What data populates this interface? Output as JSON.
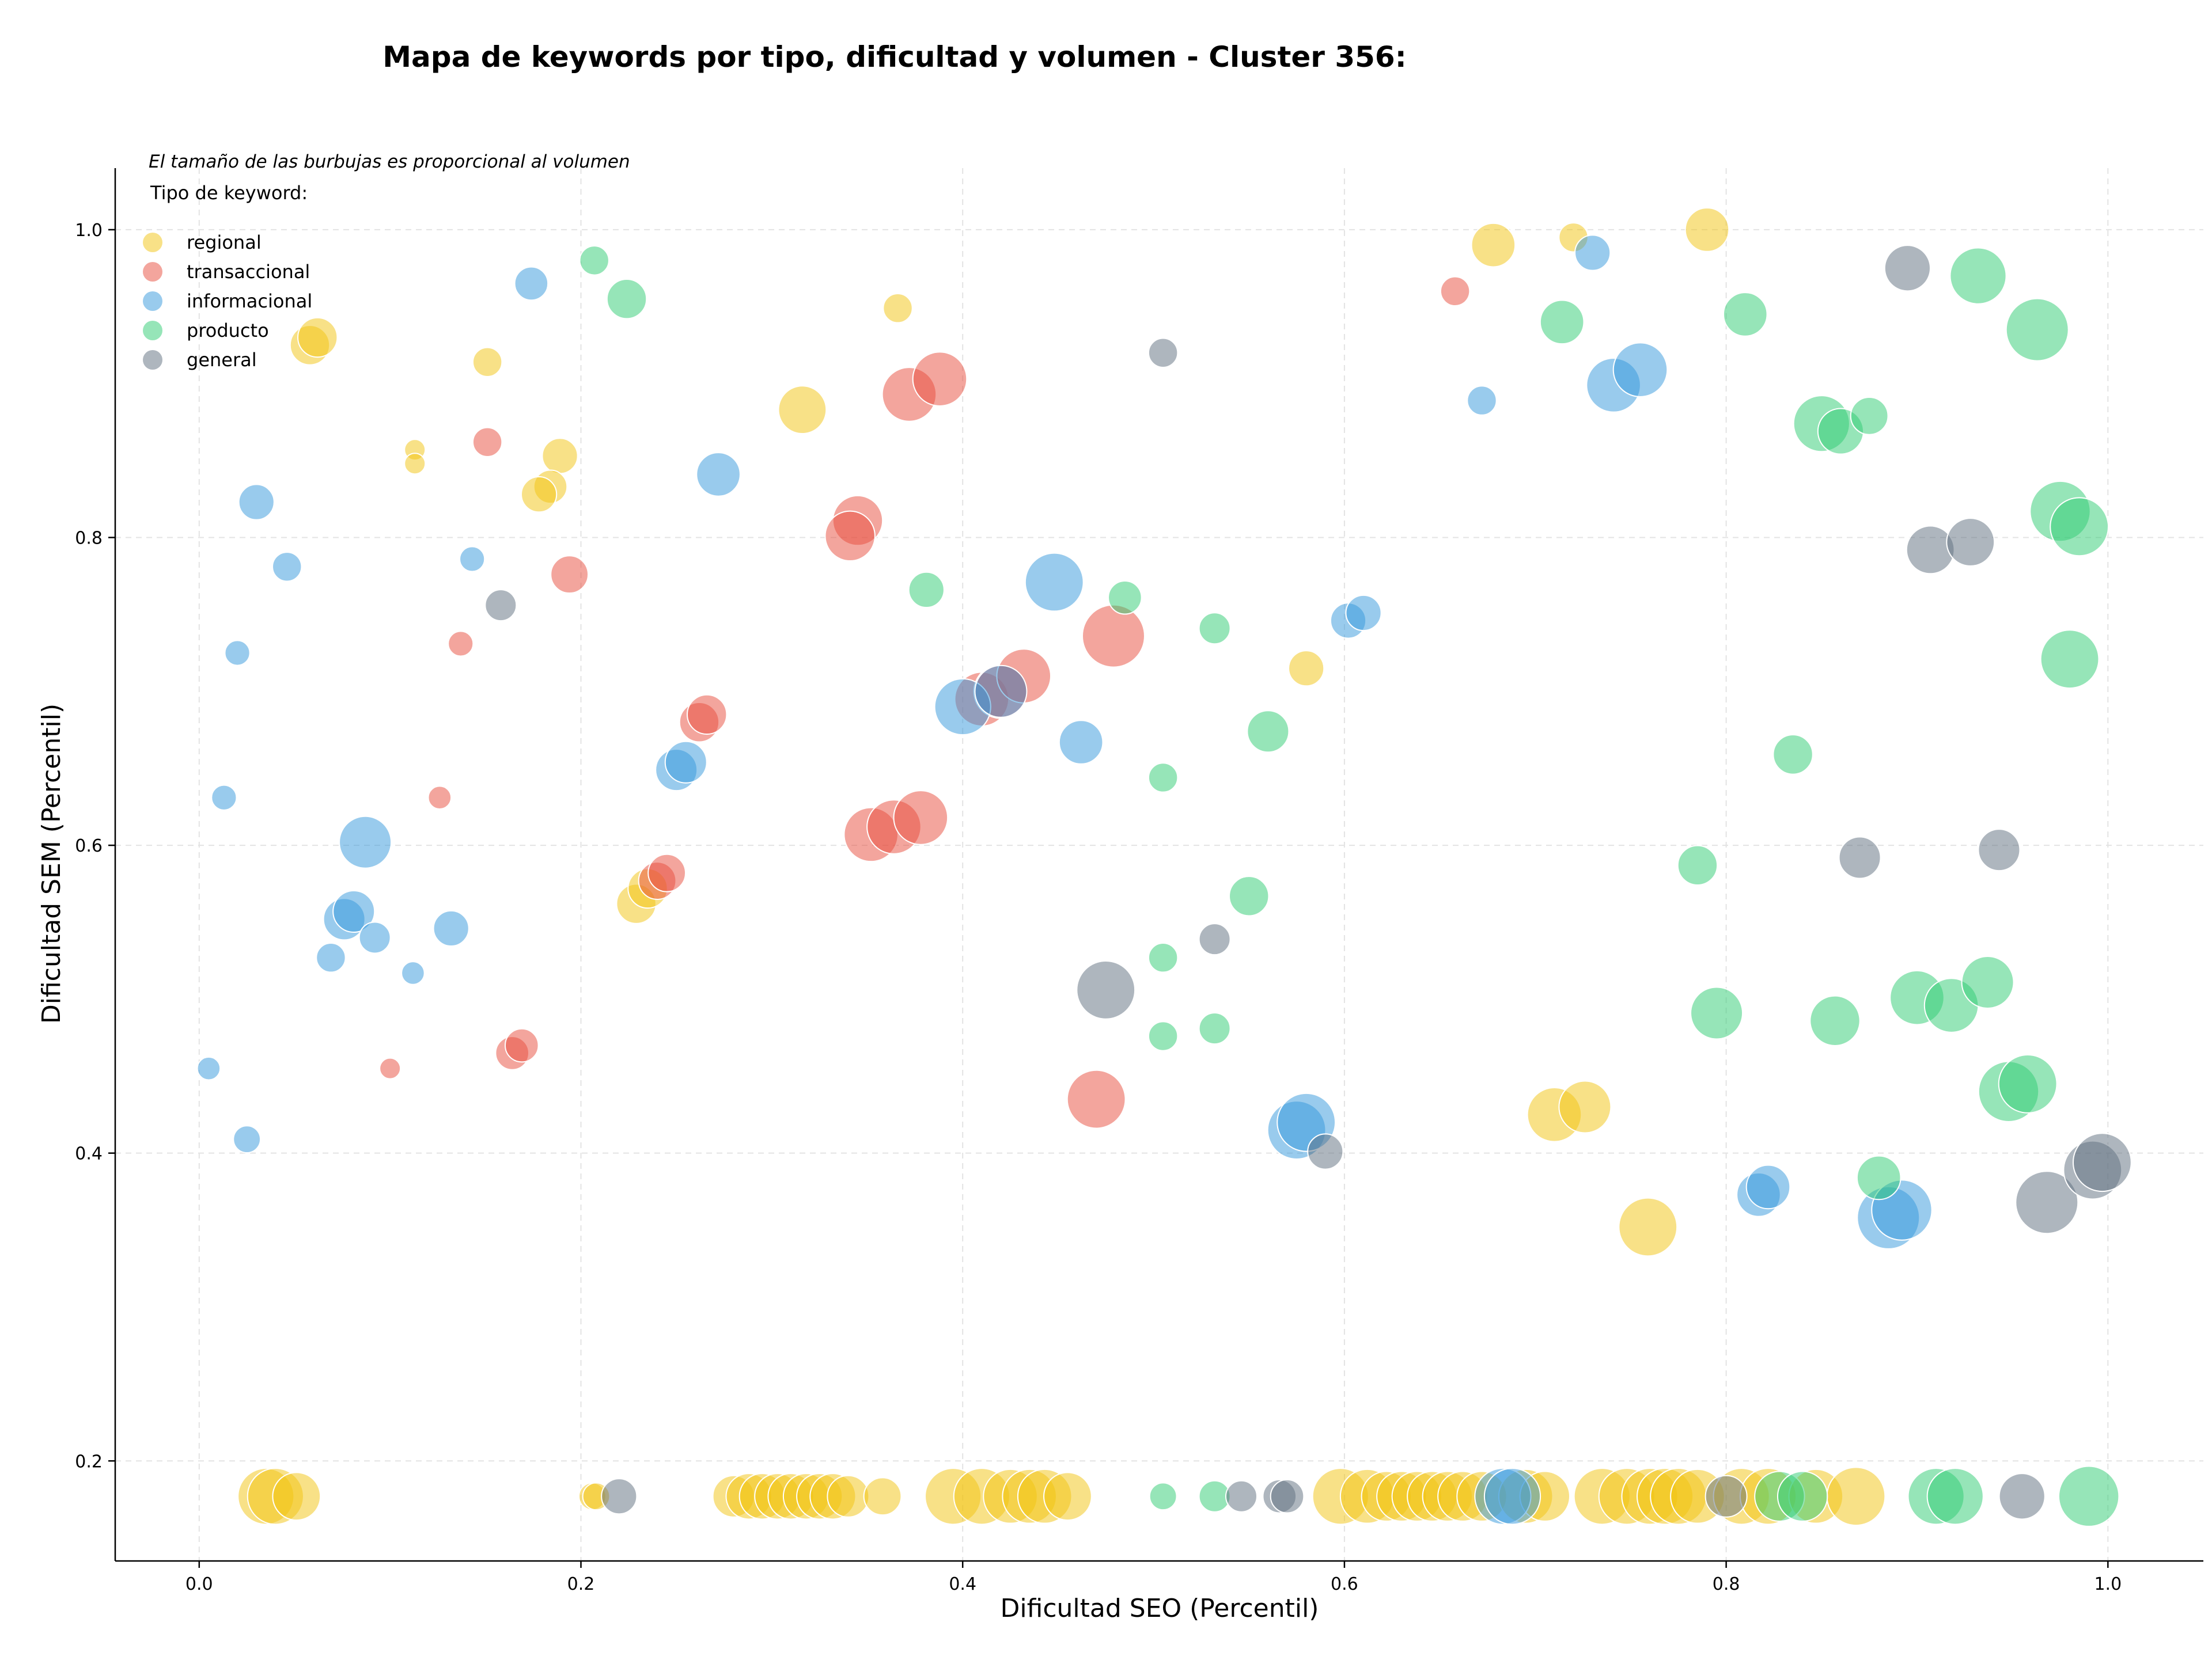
{
  "chart_data": {
    "type": "scatter",
    "title": "Mapa de keywords por tipo, dificultad y volumen - Cluster 356:",
    "subtitle": "El tamaño de las burbujas es proporcional al volumen",
    "xlabel": "Dificultad SEO (Percentil)",
    "ylabel": "Dificultad SEM (Percentil)",
    "xlim": [
      -0.044,
      1.05
    ],
    "ylim": [
      0.135,
      1.04
    ],
    "xticks": [
      0.0,
      0.2,
      0.4,
      0.6,
      0.8,
      1.0
    ],
    "yticks": [
      0.2,
      0.4,
      0.6,
      0.8,
      1.0
    ],
    "xtick_labels": [
      "0.0",
      "0.2",
      "0.4",
      "0.6",
      "0.8",
      "1.0"
    ],
    "ytick_labels": [
      "0.2",
      "0.4",
      "0.6",
      "0.8",
      "1.0"
    ],
    "grid": true,
    "legend": {
      "title": "Tipo de keyword:",
      "position": "top-left"
    },
    "series": [
      {
        "name": "regional",
        "color": "#f1c40f",
        "points": [
          {
            "x": 0.058,
            "y": 0.925,
            "r": 1.9
          },
          {
            "x": 0.062,
            "y": 0.93,
            "r": 1.9
          },
          {
            "x": 0.151,
            "y": 0.914,
            "r": 1.4
          },
          {
            "x": 0.113,
            "y": 0.857,
            "r": 1.0
          },
          {
            "x": 0.113,
            "y": 0.848,
            "r": 1.0
          },
          {
            "x": 0.189,
            "y": 0.853,
            "r": 1.7
          },
          {
            "x": 0.184,
            "y": 0.833,
            "r": 1.6
          },
          {
            "x": 0.178,
            "y": 0.828,
            "r": 1.7
          },
          {
            "x": 0.316,
            "y": 0.883,
            "r": 2.3
          },
          {
            "x": 0.366,
            "y": 0.949,
            "r": 1.4
          },
          {
            "x": 0.678,
            "y": 0.99,
            "r": 2.1
          },
          {
            "x": 0.72,
            "y": 0.995,
            "r": 1.4
          },
          {
            "x": 0.79,
            "y": 1.0,
            "r": 2.1
          },
          {
            "x": 0.58,
            "y": 0.715,
            "r": 1.7
          },
          {
            "x": 0.229,
            "y": 0.562,
            "r": 1.9
          },
          {
            "x": 0.235,
            "y": 0.572,
            "r": 1.9
          },
          {
            "x": 0.71,
            "y": 0.425,
            "r": 2.6
          },
          {
            "x": 0.726,
            "y": 0.43,
            "r": 2.5
          },
          {
            "x": 0.759,
            "y": 0.352,
            "r": 2.8
          },
          {
            "x": 0.035,
            "y": 0.177,
            "r": 2.7
          },
          {
            "x": 0.04,
            "y": 0.177,
            "r": 2.7
          },
          {
            "x": 0.051,
            "y": 0.177,
            "r": 2.3
          },
          {
            "x": 0.206,
            "y": 0.177,
            "r": 1.3
          },
          {
            "x": 0.208,
            "y": 0.177,
            "r": 1.3
          },
          {
            "x": 0.28,
            "y": 0.177,
            "r": 2.0
          },
          {
            "x": 0.288,
            "y": 0.177,
            "r": 2.2
          },
          {
            "x": 0.295,
            "y": 0.177,
            "r": 2.2
          },
          {
            "x": 0.303,
            "y": 0.177,
            "r": 2.2
          },
          {
            "x": 0.31,
            "y": 0.177,
            "r": 2.2
          },
          {
            "x": 0.318,
            "y": 0.177,
            "r": 2.2
          },
          {
            "x": 0.325,
            "y": 0.177,
            "r": 2.2
          },
          {
            "x": 0.332,
            "y": 0.177,
            "r": 2.2
          },
          {
            "x": 0.34,
            "y": 0.177,
            "r": 2.0
          },
          {
            "x": 0.358,
            "y": 0.177,
            "r": 1.8
          },
          {
            "x": 0.395,
            "y": 0.177,
            "r": 2.7
          },
          {
            "x": 0.41,
            "y": 0.177,
            "r": 2.7
          },
          {
            "x": 0.425,
            "y": 0.177,
            "r": 2.6
          },
          {
            "x": 0.435,
            "y": 0.177,
            "r": 2.6
          },
          {
            "x": 0.443,
            "y": 0.177,
            "r": 2.6
          },
          {
            "x": 0.455,
            "y": 0.177,
            "r": 2.3
          },
          {
            "x": 0.598,
            "y": 0.177,
            "r": 2.7
          },
          {
            "x": 0.612,
            "y": 0.177,
            "r": 2.6
          },
          {
            "x": 0.622,
            "y": 0.177,
            "r": 2.4
          },
          {
            "x": 0.63,
            "y": 0.177,
            "r": 2.4
          },
          {
            "x": 0.638,
            "y": 0.177,
            "r": 2.4
          },
          {
            "x": 0.646,
            "y": 0.177,
            "r": 2.4
          },
          {
            "x": 0.654,
            "y": 0.177,
            "r": 2.4
          },
          {
            "x": 0.662,
            "y": 0.177,
            "r": 2.4
          },
          {
            "x": 0.672,
            "y": 0.177,
            "r": 2.4
          },
          {
            "x": 0.695,
            "y": 0.177,
            "r": 2.6
          },
          {
            "x": 0.705,
            "y": 0.177,
            "r": 2.4
          },
          {
            "x": 0.735,
            "y": 0.177,
            "r": 2.7
          },
          {
            "x": 0.748,
            "y": 0.177,
            "r": 2.7
          },
          {
            "x": 0.76,
            "y": 0.177,
            "r": 2.7
          },
          {
            "x": 0.768,
            "y": 0.177,
            "r": 2.7
          },
          {
            "x": 0.775,
            "y": 0.177,
            "r": 2.7
          },
          {
            "x": 0.785,
            "y": 0.177,
            "r": 2.6
          },
          {
            "x": 0.808,
            "y": 0.177,
            "r": 2.7
          },
          {
            "x": 0.822,
            "y": 0.177,
            "r": 2.7
          },
          {
            "x": 0.847,
            "y": 0.177,
            "r": 2.6
          },
          {
            "x": 0.868,
            "y": 0.177,
            "r": 2.8
          }
        ]
      },
      {
        "name": "transaccional",
        "color": "#e74c3c",
        "points": [
          {
            "x": 0.151,
            "y": 0.862,
            "r": 1.4
          },
          {
            "x": 0.137,
            "y": 0.731,
            "r": 1.2
          },
          {
            "x": 0.194,
            "y": 0.776,
            "r": 1.8
          },
          {
            "x": 0.126,
            "y": 0.631,
            "r": 1.1
          },
          {
            "x": 0.1,
            "y": 0.455,
            "r": 1.0
          },
          {
            "x": 0.164,
            "y": 0.465,
            "r": 1.6
          },
          {
            "x": 0.169,
            "y": 0.47,
            "r": 1.6
          },
          {
            "x": 0.262,
            "y": 0.68,
            "r": 1.9
          },
          {
            "x": 0.266,
            "y": 0.685,
            "r": 1.9
          },
          {
            "x": 0.24,
            "y": 0.577,
            "r": 1.8
          },
          {
            "x": 0.245,
            "y": 0.582,
            "r": 1.8
          },
          {
            "x": 0.372,
            "y": 0.893,
            "r": 2.6
          },
          {
            "x": 0.388,
            "y": 0.903,
            "r": 2.6
          },
          {
            "x": 0.345,
            "y": 0.811,
            "r": 2.4
          },
          {
            "x": 0.341,
            "y": 0.801,
            "r": 2.4
          },
          {
            "x": 0.352,
            "y": 0.607,
            "r": 2.6
          },
          {
            "x": 0.364,
            "y": 0.612,
            "r": 2.6
          },
          {
            "x": 0.378,
            "y": 0.618,
            "r": 2.6
          },
          {
            "x": 0.41,
            "y": 0.695,
            "r": 2.6
          },
          {
            "x": 0.42,
            "y": 0.7,
            "r": 2.6
          },
          {
            "x": 0.432,
            "y": 0.71,
            "r": 2.6
          },
          {
            "x": 0.479,
            "y": 0.736,
            "r": 3.0
          },
          {
            "x": 0.47,
            "y": 0.435,
            "r": 2.8
          },
          {
            "x": 0.658,
            "y": 0.96,
            "r": 1.4
          }
        ]
      },
      {
        "name": "informacional",
        "color": "#3498db",
        "points": [
          {
            "x": 0.174,
            "y": 0.965,
            "r": 1.6
          },
          {
            "x": 0.03,
            "y": 0.823,
            "r": 1.7
          },
          {
            "x": 0.046,
            "y": 0.781,
            "r": 1.4
          },
          {
            "x": 0.143,
            "y": 0.786,
            "r": 1.2
          },
          {
            "x": 0.02,
            "y": 0.725,
            "r": 1.2
          },
          {
            "x": 0.013,
            "y": 0.631,
            "r": 1.2
          },
          {
            "x": 0.087,
            "y": 0.602,
            "r": 2.5
          },
          {
            "x": 0.076,
            "y": 0.552,
            "r": 2.0
          },
          {
            "x": 0.081,
            "y": 0.557,
            "r": 2.0
          },
          {
            "x": 0.069,
            "y": 0.527,
            "r": 1.4
          },
          {
            "x": 0.092,
            "y": 0.54,
            "r": 1.5
          },
          {
            "x": 0.132,
            "y": 0.546,
            "r": 1.7
          },
          {
            "x": 0.112,
            "y": 0.517,
            "r": 1.1
          },
          {
            "x": 0.005,
            "y": 0.455,
            "r": 1.1
          },
          {
            "x": 0.025,
            "y": 0.409,
            "r": 1.3
          },
          {
            "x": 0.272,
            "y": 0.841,
            "r": 2.1
          },
          {
            "x": 0.25,
            "y": 0.649,
            "r": 2.0
          },
          {
            "x": 0.255,
            "y": 0.654,
            "r": 2.0
          },
          {
            "x": 0.448,
            "y": 0.771,
            "r": 2.8
          },
          {
            "x": 0.4,
            "y": 0.69,
            "r": 2.7
          },
          {
            "x": 0.42,
            "y": 0.7,
            "r": 2.5
          },
          {
            "x": 0.462,
            "y": 0.667,
            "r": 2.1
          },
          {
            "x": 0.602,
            "y": 0.746,
            "r": 1.7
          },
          {
            "x": 0.61,
            "y": 0.751,
            "r": 1.7
          },
          {
            "x": 0.575,
            "y": 0.415,
            "r": 2.8
          },
          {
            "x": 0.58,
            "y": 0.42,
            "r": 2.8
          },
          {
            "x": 0.672,
            "y": 0.889,
            "r": 1.4
          },
          {
            "x": 0.73,
            "y": 0.985,
            "r": 1.7
          },
          {
            "x": 0.741,
            "y": 0.899,
            "r": 2.6
          },
          {
            "x": 0.755,
            "y": 0.909,
            "r": 2.6
          },
          {
            "x": 0.817,
            "y": 0.373,
            "r": 2.1
          },
          {
            "x": 0.822,
            "y": 0.378,
            "r": 2.1
          },
          {
            "x": 0.885,
            "y": 0.358,
            "r": 3.0
          },
          {
            "x": 0.892,
            "y": 0.363,
            "r": 2.9
          },
          {
            "x": 0.683,
            "y": 0.177,
            "r": 2.7
          },
          {
            "x": 0.688,
            "y": 0.177,
            "r": 2.7
          }
        ]
      },
      {
        "name": "producto",
        "color": "#2ecc71",
        "points": [
          {
            "x": 0.207,
            "y": 0.98,
            "r": 1.4
          },
          {
            "x": 0.224,
            "y": 0.955,
            "r": 1.9
          },
          {
            "x": 0.381,
            "y": 0.766,
            "r": 1.7
          },
          {
            "x": 0.485,
            "y": 0.761,
            "r": 1.6
          },
          {
            "x": 0.532,
            "y": 0.741,
            "r": 1.5
          },
          {
            "x": 0.56,
            "y": 0.674,
            "r": 2.0
          },
          {
            "x": 0.505,
            "y": 0.644,
            "r": 1.4
          },
          {
            "x": 0.55,
            "y": 0.567,
            "r": 1.9
          },
          {
            "x": 0.505,
            "y": 0.527,
            "r": 1.4
          },
          {
            "x": 0.505,
            "y": 0.476,
            "r": 1.4
          },
          {
            "x": 0.532,
            "y": 0.481,
            "r": 1.5
          },
          {
            "x": 0.714,
            "y": 0.94,
            "r": 2.1
          },
          {
            "x": 0.81,
            "y": 0.945,
            "r": 2.1
          },
          {
            "x": 0.85,
            "y": 0.874,
            "r": 2.7
          },
          {
            "x": 0.86,
            "y": 0.869,
            "r": 2.2
          },
          {
            "x": 0.875,
            "y": 0.879,
            "r": 1.8
          },
          {
            "x": 0.932,
            "y": 0.97,
            "r": 2.7
          },
          {
            "x": 0.963,
            "y": 0.935,
            "r": 3.0
          },
          {
            "x": 0.975,
            "y": 0.817,
            "r": 2.9
          },
          {
            "x": 0.985,
            "y": 0.807,
            "r": 2.8
          },
          {
            "x": 0.98,
            "y": 0.721,
            "r": 2.8
          },
          {
            "x": 0.835,
            "y": 0.659,
            "r": 1.9
          },
          {
            "x": 0.785,
            "y": 0.587,
            "r": 1.9
          },
          {
            "x": 0.795,
            "y": 0.491,
            "r": 2.5
          },
          {
            "x": 0.857,
            "y": 0.486,
            "r": 2.4
          },
          {
            "x": 0.9,
            "y": 0.501,
            "r": 2.6
          },
          {
            "x": 0.918,
            "y": 0.496,
            "r": 2.6
          },
          {
            "x": 0.937,
            "y": 0.511,
            "r": 2.5
          },
          {
            "x": 0.948,
            "y": 0.44,
            "r": 2.9
          },
          {
            "x": 0.958,
            "y": 0.445,
            "r": 2.8
          },
          {
            "x": 0.88,
            "y": 0.384,
            "r": 2.1
          },
          {
            "x": 0.505,
            "y": 0.177,
            "r": 1.3
          },
          {
            "x": 0.532,
            "y": 0.177,
            "r": 1.5
          },
          {
            "x": 0.828,
            "y": 0.177,
            "r": 2.4
          },
          {
            "x": 0.84,
            "y": 0.177,
            "r": 2.4
          },
          {
            "x": 0.91,
            "y": 0.177,
            "r": 2.7
          },
          {
            "x": 0.92,
            "y": 0.177,
            "r": 2.7
          },
          {
            "x": 0.99,
            "y": 0.177,
            "r": 2.9
          }
        ]
      },
      {
        "name": "general",
        "color": "#5d6d7e",
        "points": [
          {
            "x": 0.158,
            "y": 0.756,
            "r": 1.5
          },
          {
            "x": 0.505,
            "y": 0.92,
            "r": 1.4
          },
          {
            "x": 0.475,
            "y": 0.506,
            "r": 2.8
          },
          {
            "x": 0.532,
            "y": 0.539,
            "r": 1.5
          },
          {
            "x": 0.59,
            "y": 0.401,
            "r": 1.7
          },
          {
            "x": 0.895,
            "y": 0.975,
            "r": 2.2
          },
          {
            "x": 0.907,
            "y": 0.792,
            "r": 2.3
          },
          {
            "x": 0.928,
            "y": 0.797,
            "r": 2.3
          },
          {
            "x": 0.87,
            "y": 0.592,
            "r": 2.0
          },
          {
            "x": 0.943,
            "y": 0.597,
            "r": 2.0
          },
          {
            "x": 0.968,
            "y": 0.368,
            "r": 3.0
          },
          {
            "x": 0.992,
            "y": 0.389,
            "r": 2.8
          },
          {
            "x": 0.997,
            "y": 0.394,
            "r": 2.8
          },
          {
            "x": 0.22,
            "y": 0.177,
            "r": 1.7
          },
          {
            "x": 0.546,
            "y": 0.177,
            "r": 1.5
          },
          {
            "x": 0.566,
            "y": 0.177,
            "r": 1.6
          },
          {
            "x": 0.57,
            "y": 0.177,
            "r": 1.6
          },
          {
            "x": 0.8,
            "y": 0.177,
            "r": 2.0
          },
          {
            "x": 0.955,
            "y": 0.177,
            "r": 2.2
          }
        ]
      }
    ]
  }
}
